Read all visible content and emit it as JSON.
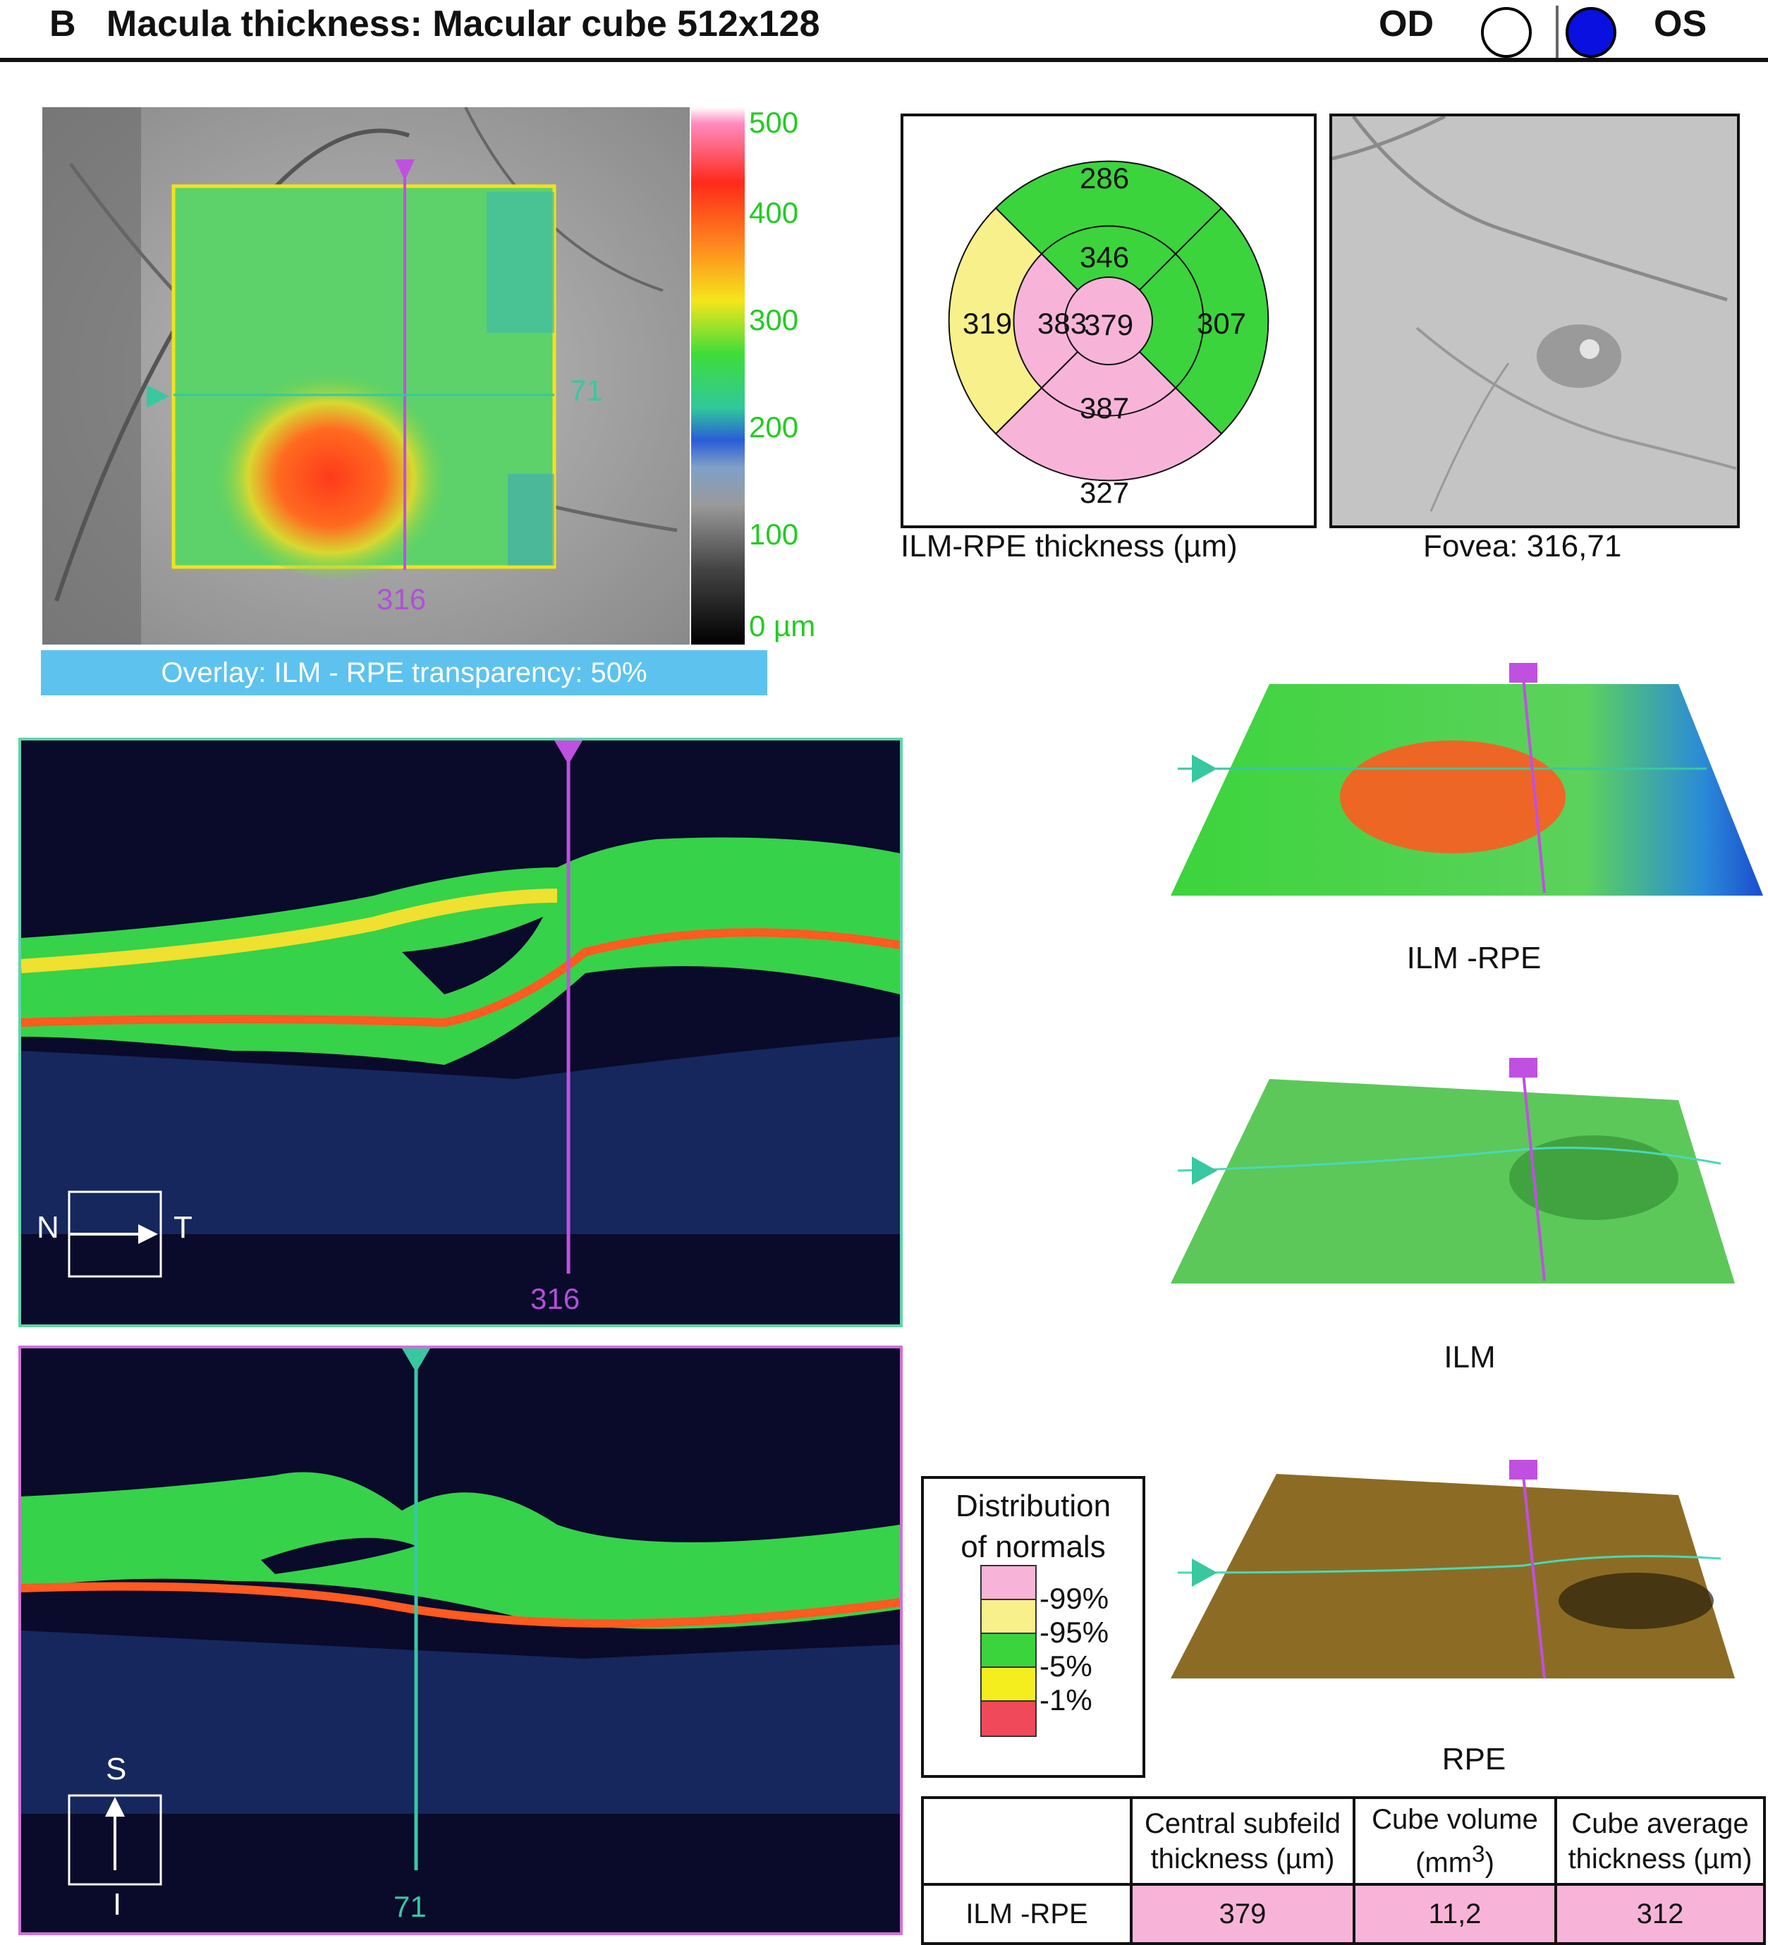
{
  "header": {
    "title": "B   Macula thickness: Macular cube 512x128",
    "od_label": "OD",
    "os_label": "OS",
    "os_color": "#0a10e0"
  },
  "fundus_panel": {
    "v_line_label": "316",
    "h_line_label": "71",
    "colorbar_labels": [
      "500",
      "400",
      "300",
      "200",
      "100",
      "0 µm"
    ],
    "overlay_caption": "Overlay: ILM - RPE transparency: 50%"
  },
  "etdrs": {
    "caption": "ILM-RPE thickness (µm)",
    "values": {
      "outer_superior": "286",
      "outer_nasal": "319",
      "outer_inferior": "327",
      "inner_superior": "346",
      "inner_nasal": "383",
      "inner_temporal": "307",
      "inner_inferior": "387",
      "center": "379"
    }
  },
  "fovea": {
    "caption": "Fovea: 316,71"
  },
  "bscan_horizontal": {
    "line_label": "316",
    "orient_left": "N",
    "orient_right": "T"
  },
  "bscan_vertical": {
    "line_label": "71",
    "orient_top": "S",
    "orient_bottom": "I"
  },
  "surfaces": [
    {
      "label": "ILM -RPE"
    },
    {
      "label": "ILM"
    },
    {
      "label": "RPE"
    }
  ],
  "legend": {
    "title_line1": "Distribution",
    "title_line2": "of normals",
    "items": [
      {
        "label": "99%",
        "color": "#f8b4d8"
      },
      {
        "label": "95%",
        "color": "#f8f08a"
      },
      {
        "label": "5%",
        "color": "#3cd43c"
      },
      {
        "label": "1%",
        "color": "#f5ee1e"
      },
      {
        "label": "",
        "color": "#f04a5a"
      }
    ]
  },
  "measurements": {
    "headers": [
      "",
      "Central subfeild thickness (µm)",
      "Cube volume (mm³)",
      "Cube average thickness (µm)"
    ],
    "row_label": "ILM -RPE",
    "values": [
      "379",
      "11,2",
      "312"
    ]
  }
}
